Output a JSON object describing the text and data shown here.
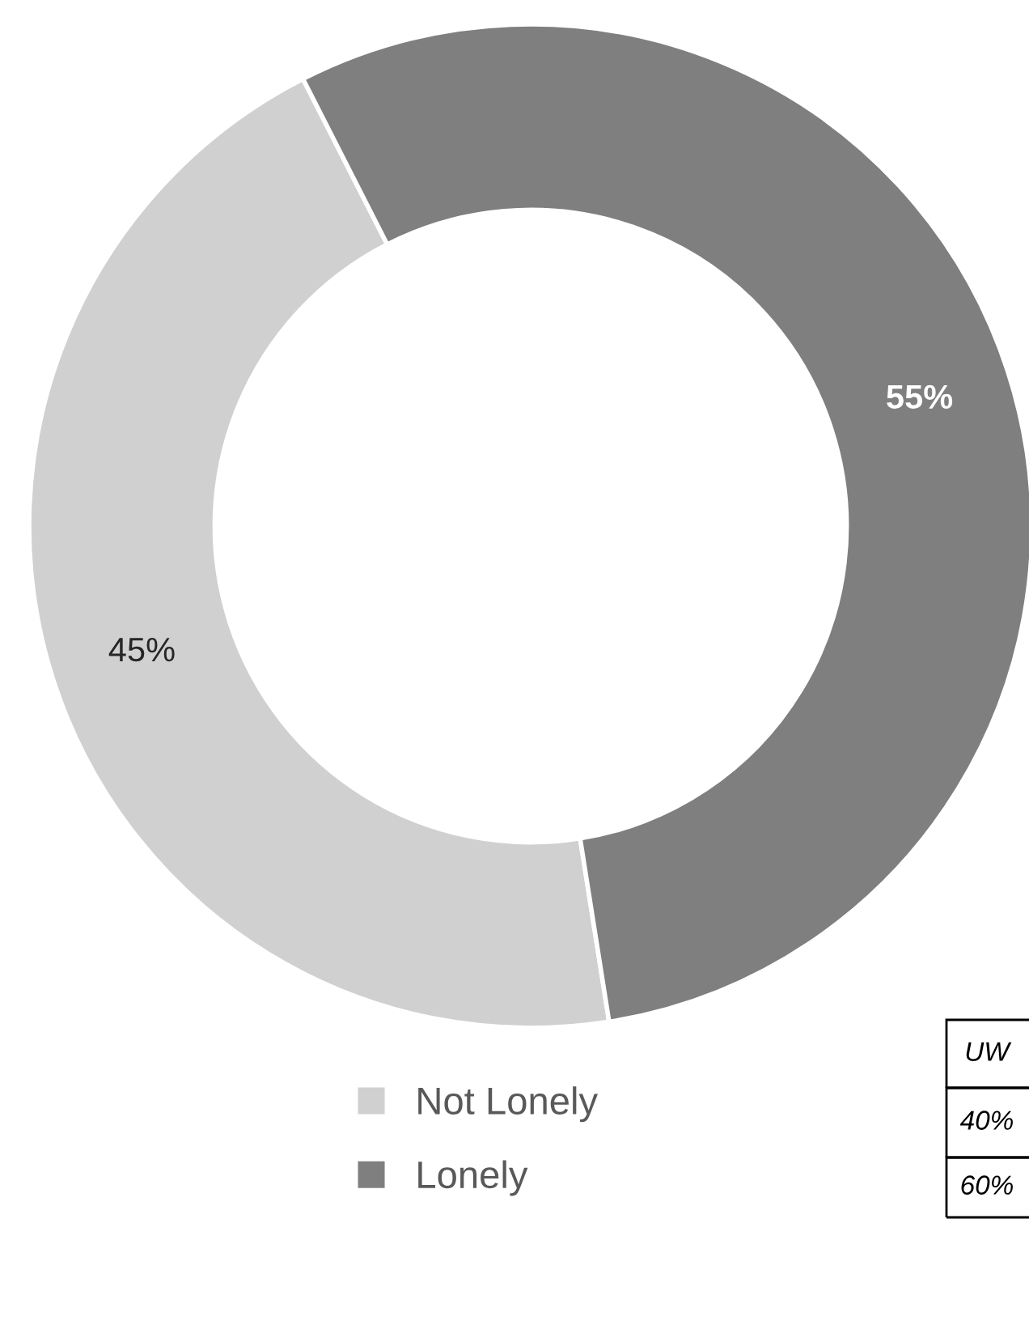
{
  "chart_data": {
    "type": "donut",
    "categories": [
      "Not Lonely",
      "Lonely"
    ],
    "values": [
      45,
      55
    ],
    "colors": [
      "#d0d0d0",
      "#7f7f7f"
    ],
    "value_labels": [
      "45%",
      "55%"
    ],
    "legend": "bottom left",
    "annotations": [
      "UW",
      "40%",
      "60%"
    ]
  }
}
